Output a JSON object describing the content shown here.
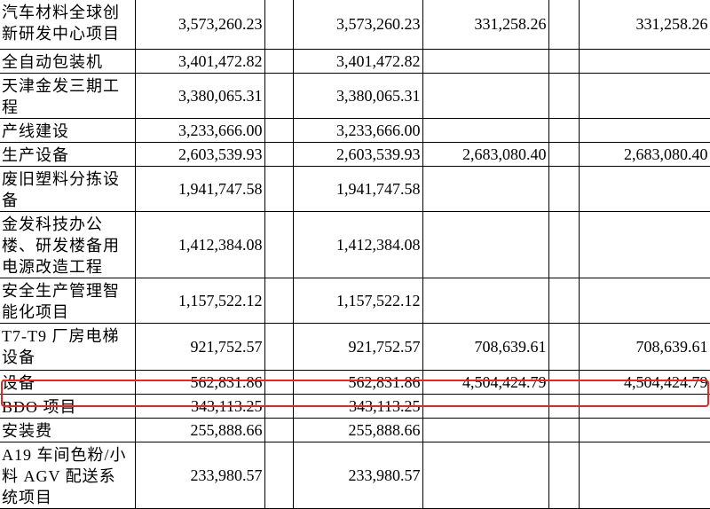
{
  "table": {
    "rows": [
      {
        "name": "汽车材料全球创新研发中心项目",
        "a": "3,573,260.23",
        "b": "3,573,260.23",
        "c": "331,258.26",
        "d": "331,258.26"
      },
      {
        "name": "全自动包装机",
        "a": "3,401,472.82",
        "b": "3,401,472.82"
      },
      {
        "name": "天津金发三期工程",
        "a": "3,380,065.31",
        "b": "3,380,065.31"
      },
      {
        "name": "产线建设",
        "a": "3,233,666.00",
        "b": "3,233,666.00"
      },
      {
        "name": "生产设备",
        "a": "2,603,539.93",
        "b": "2,603,539.93",
        "c": "2,683,080.40",
        "d": "2,683,080.40"
      },
      {
        "name": "废旧塑料分拣设备",
        "a": "1,941,747.58",
        "b": "1,941,747.58"
      },
      {
        "name": "金发科技办公楼、研发楼备用电源改造工程",
        "a": "1,412,384.08",
        "b": "1,412,384.08"
      },
      {
        "name": "安全生产管理智能化项目",
        "a": "1,157,522.12",
        "b": "1,157,522.12"
      },
      {
        "name": "T7-T9 厂房电梯设备",
        "a": "921,752.57",
        "b": "921,752.57",
        "c": "708,639.61",
        "d": "708,639.61"
      },
      {
        "name": "设备",
        "a": "562,831.86",
        "b": "562,831.86",
        "c": "4,504,424.79",
        "d": "4,504,424.79"
      },
      {
        "name": "BDO 项目",
        "a": "343,113.25",
        "b": "343,113.25"
      },
      {
        "name": "安装费",
        "a": "255,888.66",
        "b": "255,888.66"
      },
      {
        "name": "A19 车间色粉/小料 AGV 配送系统项目",
        "a": "233,980.57",
        "b": "233,980.57"
      }
    ]
  }
}
